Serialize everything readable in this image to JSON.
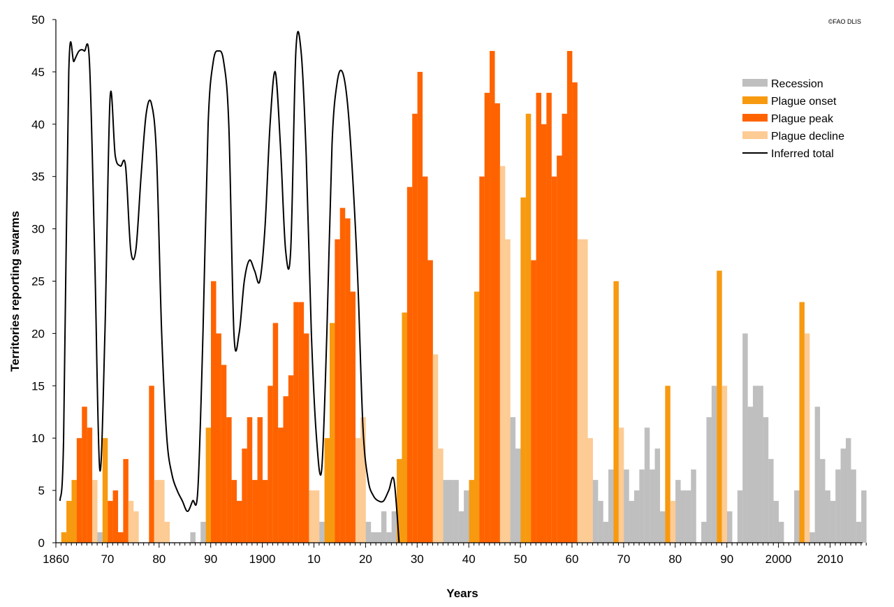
{
  "chart_data": {
    "type": "bar",
    "title": "",
    "credit": "©FAO DLIS",
    "xlabel": "Years",
    "ylabel": "Territories reporting swarms",
    "xlim": [
      1860,
      2017
    ],
    "ylim": [
      0,
      50
    ],
    "yticks": [
      0,
      5,
      10,
      15,
      20,
      25,
      30,
      35,
      40,
      45,
      50
    ],
    "xticks": [
      {
        "year": 1860,
        "label": "1860"
      },
      {
        "year": 1870,
        "label": "70"
      },
      {
        "year": 1880,
        "label": "80"
      },
      {
        "year": 1890,
        "label": "90"
      },
      {
        "year": 1900,
        "label": "1900"
      },
      {
        "year": 1910,
        "label": "10"
      },
      {
        "year": 1920,
        "label": "20"
      },
      {
        "year": 1930,
        "label": "30"
      },
      {
        "year": 1940,
        "label": "40"
      },
      {
        "year": 1950,
        "label": "50"
      },
      {
        "year": 1960,
        "label": "60"
      },
      {
        "year": 1970,
        "label": "70"
      },
      {
        "year": 1980,
        "label": "80"
      },
      {
        "year": 1990,
        "label": "90"
      },
      {
        "year": 2000,
        "label": "2000"
      },
      {
        "year": 2010,
        "label": "2010"
      }
    ],
    "grid": false,
    "legend_position": "top-right",
    "colors": {
      "recession": "#bfbfbf",
      "onset": "#f79a10",
      "peak": "#ff6300",
      "decline": "#fdcb94",
      "total": "#000000"
    },
    "legend": [
      {
        "key": "recession",
        "label": "Recession"
      },
      {
        "key": "onset",
        "label": "Plague onset"
      },
      {
        "key": "peak",
        "label": "Plague peak"
      },
      {
        "key": "decline",
        "label": "Plague decline"
      },
      {
        "key": "total",
        "label": "Inferred total"
      }
    ],
    "bars": [
      {
        "year": 1861,
        "value": 1,
        "phase": "onset"
      },
      {
        "year": 1862,
        "value": 4,
        "phase": "onset"
      },
      {
        "year": 1863,
        "value": 6,
        "phase": "onset"
      },
      {
        "year": 1864,
        "value": 10,
        "phase": "peak"
      },
      {
        "year": 1865,
        "value": 13,
        "phase": "peak"
      },
      {
        "year": 1866,
        "value": 11,
        "phase": "peak"
      },
      {
        "year": 1867,
        "value": 6,
        "phase": "decline"
      },
      {
        "year": 1868,
        "value": 1,
        "phase": "recession"
      },
      {
        "year": 1869,
        "value": 10,
        "phase": "onset"
      },
      {
        "year": 1870,
        "value": 4,
        "phase": "peak"
      },
      {
        "year": 1871,
        "value": 5,
        "phase": "peak"
      },
      {
        "year": 1872,
        "value": 1,
        "phase": "peak"
      },
      {
        "year": 1873,
        "value": 8,
        "phase": "peak"
      },
      {
        "year": 1874,
        "value": 4,
        "phase": "decline"
      },
      {
        "year": 1875,
        "value": 3,
        "phase": "decline"
      },
      {
        "year": 1878,
        "value": 15,
        "phase": "peak"
      },
      {
        "year": 1879,
        "value": 6,
        "phase": "decline"
      },
      {
        "year": 1880,
        "value": 6,
        "phase": "decline"
      },
      {
        "year": 1881,
        "value": 2,
        "phase": "decline"
      },
      {
        "year": 1886,
        "value": 1,
        "phase": "recession"
      },
      {
        "year": 1888,
        "value": 2,
        "phase": "recession"
      },
      {
        "year": 1889,
        "value": 11,
        "phase": "onset"
      },
      {
        "year": 1890,
        "value": 25,
        "phase": "peak"
      },
      {
        "year": 1891,
        "value": 20,
        "phase": "peak"
      },
      {
        "year": 1892,
        "value": 17,
        "phase": "peak"
      },
      {
        "year": 1893,
        "value": 12,
        "phase": "peak"
      },
      {
        "year": 1894,
        "value": 6,
        "phase": "peak"
      },
      {
        "year": 1895,
        "value": 4,
        "phase": "peak"
      },
      {
        "year": 1896,
        "value": 9,
        "phase": "peak"
      },
      {
        "year": 1897,
        "value": 12,
        "phase": "peak"
      },
      {
        "year": 1898,
        "value": 6,
        "phase": "peak"
      },
      {
        "year": 1899,
        "value": 12,
        "phase": "peak"
      },
      {
        "year": 1900,
        "value": 6,
        "phase": "peak"
      },
      {
        "year": 1901,
        "value": 15,
        "phase": "peak"
      },
      {
        "year": 1902,
        "value": 21,
        "phase": "peak"
      },
      {
        "year": 1903,
        "value": 11,
        "phase": "peak"
      },
      {
        "year": 1904,
        "value": 14,
        "phase": "peak"
      },
      {
        "year": 1905,
        "value": 16,
        "phase": "peak"
      },
      {
        "year": 1906,
        "value": 23,
        "phase": "peak"
      },
      {
        "year": 1907,
        "value": 23,
        "phase": "peak"
      },
      {
        "year": 1908,
        "value": 20,
        "phase": "peak"
      },
      {
        "year": 1909,
        "value": 5,
        "phase": "decline"
      },
      {
        "year": 1910,
        "value": 5,
        "phase": "decline"
      },
      {
        "year": 1911,
        "value": 2,
        "phase": "recession"
      },
      {
        "year": 1912,
        "value": 10,
        "phase": "onset"
      },
      {
        "year": 1913,
        "value": 21,
        "phase": "onset"
      },
      {
        "year": 1914,
        "value": 29,
        "phase": "peak"
      },
      {
        "year": 1915,
        "value": 32,
        "phase": "peak"
      },
      {
        "year": 1916,
        "value": 31,
        "phase": "peak"
      },
      {
        "year": 1917,
        "value": 24,
        "phase": "peak"
      },
      {
        "year": 1918,
        "value": 10,
        "phase": "decline"
      },
      {
        "year": 1919,
        "value": 12,
        "phase": "decline"
      },
      {
        "year": 1920,
        "value": 2,
        "phase": "recession"
      },
      {
        "year": 1921,
        "value": 1,
        "phase": "recession"
      },
      {
        "year": 1922,
        "value": 1,
        "phase": "recession"
      },
      {
        "year": 1923,
        "value": 3,
        "phase": "recession"
      },
      {
        "year": 1924,
        "value": 1,
        "phase": "recession"
      },
      {
        "year": 1925,
        "value": 3,
        "phase": "recession"
      },
      {
        "year": 1926,
        "value": 8,
        "phase": "onset"
      },
      {
        "year": 1927,
        "value": 22,
        "phase": "onset"
      },
      {
        "year": 1928,
        "value": 34,
        "phase": "peak"
      },
      {
        "year": 1929,
        "value": 41,
        "phase": "peak"
      },
      {
        "year": 1930,
        "value": 45,
        "phase": "peak"
      },
      {
        "year": 1931,
        "value": 35,
        "phase": "peak"
      },
      {
        "year": 1932,
        "value": 27,
        "phase": "peak"
      },
      {
        "year": 1933,
        "value": 18,
        "phase": "decline"
      },
      {
        "year": 1934,
        "value": 9,
        "phase": "decline"
      },
      {
        "year": 1935,
        "value": 6,
        "phase": "recession"
      },
      {
        "year": 1936,
        "value": 6,
        "phase": "recession"
      },
      {
        "year": 1937,
        "value": 6,
        "phase": "recession"
      },
      {
        "year": 1938,
        "value": 3,
        "phase": "recession"
      },
      {
        "year": 1939,
        "value": 5,
        "phase": "recession"
      },
      {
        "year": 1940,
        "value": 6,
        "phase": "onset"
      },
      {
        "year": 1941,
        "value": 24,
        "phase": "onset"
      },
      {
        "year": 1942,
        "value": 35,
        "phase": "peak"
      },
      {
        "year": 1943,
        "value": 43,
        "phase": "peak"
      },
      {
        "year": 1944,
        "value": 47,
        "phase": "peak"
      },
      {
        "year": 1945,
        "value": 42,
        "phase": "peak"
      },
      {
        "year": 1946,
        "value": 36,
        "phase": "decline"
      },
      {
        "year": 1947,
        "value": 29,
        "phase": "decline"
      },
      {
        "year": 1948,
        "value": 12,
        "phase": "recession"
      },
      {
        "year": 1949,
        "value": 9,
        "phase": "recession"
      },
      {
        "year": 1950,
        "value": 33,
        "phase": "onset"
      },
      {
        "year": 1951,
        "value": 41,
        "phase": "onset"
      },
      {
        "year": 1952,
        "value": 27,
        "phase": "peak"
      },
      {
        "year": 1953,
        "value": 43,
        "phase": "peak"
      },
      {
        "year": 1954,
        "value": 40,
        "phase": "peak"
      },
      {
        "year": 1955,
        "value": 43,
        "phase": "peak"
      },
      {
        "year": 1956,
        "value": 35,
        "phase": "peak"
      },
      {
        "year": 1957,
        "value": 37,
        "phase": "peak"
      },
      {
        "year": 1958,
        "value": 41,
        "phase": "peak"
      },
      {
        "year": 1959,
        "value": 47,
        "phase": "peak"
      },
      {
        "year": 1960,
        "value": 44,
        "phase": "peak"
      },
      {
        "year": 1961,
        "value": 29,
        "phase": "decline"
      },
      {
        "year": 1962,
        "value": 29,
        "phase": "decline"
      },
      {
        "year": 1963,
        "value": 10,
        "phase": "decline"
      },
      {
        "year": 1964,
        "value": 6,
        "phase": "recession"
      },
      {
        "year": 1965,
        "value": 4,
        "phase": "recession"
      },
      {
        "year": 1966,
        "value": 2,
        "phase": "recession"
      },
      {
        "year": 1967,
        "value": 7,
        "phase": "recession"
      },
      {
        "year": 1968,
        "value": 25,
        "phase": "onset"
      },
      {
        "year": 1969,
        "value": 11,
        "phase": "decline"
      },
      {
        "year": 1970,
        "value": 7,
        "phase": "recession"
      },
      {
        "year": 1971,
        "value": 4,
        "phase": "recession"
      },
      {
        "year": 1972,
        "value": 5,
        "phase": "recession"
      },
      {
        "year": 1973,
        "value": 7,
        "phase": "recession"
      },
      {
        "year": 1974,
        "value": 11,
        "phase": "recession"
      },
      {
        "year": 1975,
        "value": 7,
        "phase": "recession"
      },
      {
        "year": 1976,
        "value": 9,
        "phase": "recession"
      },
      {
        "year": 1977,
        "value": 3,
        "phase": "recession"
      },
      {
        "year": 1978,
        "value": 15,
        "phase": "onset"
      },
      {
        "year": 1979,
        "value": 4,
        "phase": "decline"
      },
      {
        "year": 1980,
        "value": 6,
        "phase": "recession"
      },
      {
        "year": 1981,
        "value": 5,
        "phase": "recession"
      },
      {
        "year": 1982,
        "value": 5,
        "phase": "recession"
      },
      {
        "year": 1983,
        "value": 7,
        "phase": "recession"
      },
      {
        "year": 1985,
        "value": 2,
        "phase": "recession"
      },
      {
        "year": 1986,
        "value": 12,
        "phase": "recession"
      },
      {
        "year": 1987,
        "value": 15,
        "phase": "recession"
      },
      {
        "year": 1988,
        "value": 26,
        "phase": "onset"
      },
      {
        "year": 1989,
        "value": 15,
        "phase": "decline"
      },
      {
        "year": 1990,
        "value": 3,
        "phase": "recession"
      },
      {
        "year": 1992,
        "value": 5,
        "phase": "recession"
      },
      {
        "year": 1993,
        "value": 20,
        "phase": "recession"
      },
      {
        "year": 1994,
        "value": 13,
        "phase": "recession"
      },
      {
        "year": 1995,
        "value": 15,
        "phase": "recession"
      },
      {
        "year": 1996,
        "value": 15,
        "phase": "recession"
      },
      {
        "year": 1997,
        "value": 12,
        "phase": "recession"
      },
      {
        "year": 1998,
        "value": 8,
        "phase": "recession"
      },
      {
        "year": 1999,
        "value": 4,
        "phase": "recession"
      },
      {
        "year": 2000,
        "value": 2,
        "phase": "recession"
      },
      {
        "year": 2003,
        "value": 5,
        "phase": "recession"
      },
      {
        "year": 2004,
        "value": 23,
        "phase": "onset"
      },
      {
        "year": 2005,
        "value": 20,
        "phase": "decline"
      },
      {
        "year": 2006,
        "value": 1,
        "phase": "recession"
      },
      {
        "year": 2007,
        "value": 13,
        "phase": "recession"
      },
      {
        "year": 2008,
        "value": 8,
        "phase": "recession"
      },
      {
        "year": 2009,
        "value": 5,
        "phase": "recession"
      },
      {
        "year": 2010,
        "value": 4,
        "phase": "recession"
      },
      {
        "year": 2011,
        "value": 7,
        "phase": "recession"
      },
      {
        "year": 2012,
        "value": 9,
        "phase": "recession"
      },
      {
        "year": 2013,
        "value": 10,
        "phase": "recession"
      },
      {
        "year": 2014,
        "value": 7,
        "phase": "recession"
      },
      {
        "year": 2015,
        "value": 2,
        "phase": "recession"
      },
      {
        "year": 2016,
        "value": 5,
        "phase": "recession"
      }
    ],
    "inferred_total": [
      [
        1860.3,
        4
      ],
      [
        1861,
        10
      ],
      [
        1862,
        45
      ],
      [
        1863,
        46
      ],
      [
        1864,
        47
      ],
      [
        1865,
        47
      ],
      [
        1866,
        46
      ],
      [
        1867,
        28
      ],
      [
        1868,
        7
      ],
      [
        1869,
        20
      ],
      [
        1870,
        42.5
      ],
      [
        1871,
        37
      ],
      [
        1872,
        36
      ],
      [
        1873,
        36
      ],
      [
        1874,
        28
      ],
      [
        1875,
        28
      ],
      [
        1876,
        35
      ],
      [
        1877,
        41
      ],
      [
        1878,
        42
      ],
      [
        1879,
        37
      ],
      [
        1880,
        20
      ],
      [
        1881,
        10
      ],
      [
        1882,
        6.5
      ],
      [
        1883,
        5
      ],
      [
        1884,
        4
      ],
      [
        1885,
        3
      ],
      [
        1886,
        4
      ],
      [
        1887,
        5
      ],
      [
        1888,
        20
      ],
      [
        1889,
        40
      ],
      [
        1890,
        46
      ],
      [
        1891,
        47
      ],
      [
        1892,
        46
      ],
      [
        1893,
        40
      ],
      [
        1894,
        20
      ],
      [
        1895,
        20
      ],
      [
        1896,
        25
      ],
      [
        1897,
        27
      ],
      [
        1898,
        26
      ],
      [
        1899,
        25
      ],
      [
        1900,
        30
      ],
      [
        1901,
        40
      ],
      [
        1902,
        45
      ],
      [
        1903,
        38
      ],
      [
        1904,
        28
      ],
      [
        1905,
        28
      ],
      [
        1906,
        47
      ],
      [
        1907,
        47
      ],
      [
        1908,
        37
      ],
      [
        1909,
        20
      ],
      [
        1910,
        10
      ],
      [
        1911,
        7
      ],
      [
        1912,
        20
      ],
      [
        1913,
        38
      ],
      [
        1914,
        44
      ],
      [
        1915,
        45
      ],
      [
        1916,
        42
      ],
      [
        1917,
        35
      ],
      [
        1918,
        25
      ],
      [
        1919,
        11
      ],
      [
        1920,
        6
      ],
      [
        1921,
        4.5
      ],
      [
        1922,
        4
      ],
      [
        1923,
        4
      ],
      [
        1924,
        5
      ],
      [
        1925,
        6
      ],
      [
        1926,
        0
      ]
    ]
  }
}
